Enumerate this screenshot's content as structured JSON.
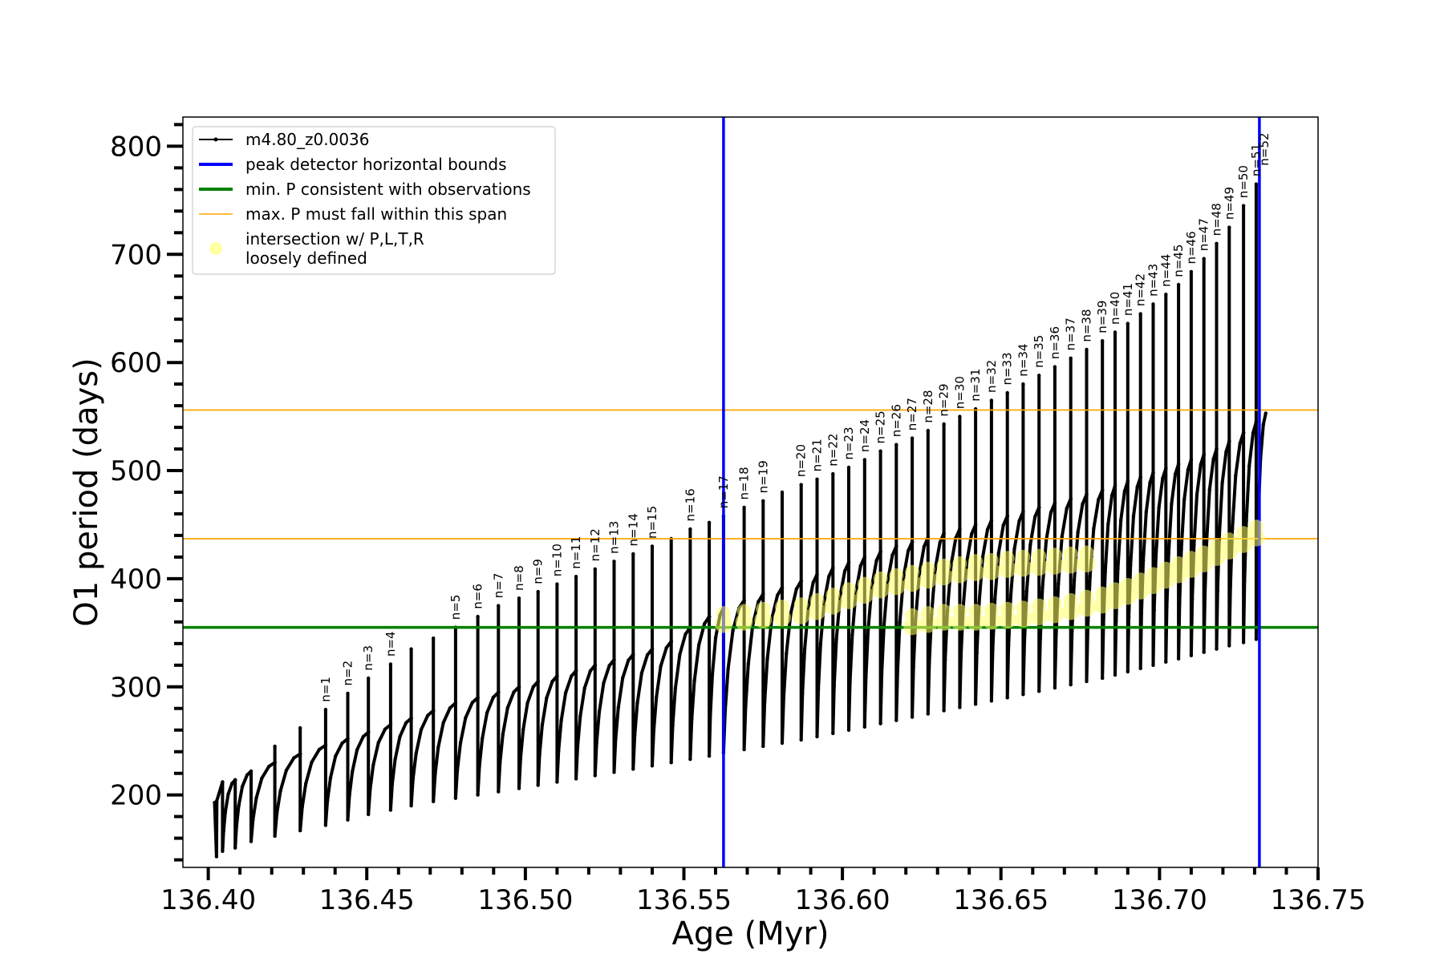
{
  "chart_data": {
    "type": "line",
    "xlabel": "Age (Myr)",
    "ylabel": "O1 period (days)",
    "xlim": [
      136.392,
      136.75
    ],
    "ylim": [
      133,
      827
    ],
    "x_ticks": [
      136.4,
      136.45,
      136.5,
      136.55,
      136.6,
      136.65,
      136.7,
      136.75
    ],
    "x_tick_labels": [
      "136.40",
      "136.45",
      "136.50",
      "136.55",
      "136.60",
      "136.65",
      "136.70",
      "136.75"
    ],
    "y_ticks": [
      200,
      300,
      400,
      500,
      600,
      700,
      800
    ],
    "y_tick_labels": [
      "200",
      "300",
      "400",
      "500",
      "600",
      "700",
      "800"
    ],
    "y_minor_step": 20,
    "x_minor_step": 0.01,
    "grid": false,
    "legend_position": "top-left",
    "legend": [
      {
        "label": "m4.80_z0.0036",
        "style": "line-dot",
        "color": "#000000"
      },
      {
        "label": "peak detector horizontal bounds",
        "style": "line",
        "color": "#0000ff"
      },
      {
        "label": "min. P consistent with observations",
        "style": "line",
        "color": "#008000"
      },
      {
        "label": "max. P must fall within this span",
        "style": "thin-line",
        "color": "#ffa500"
      },
      {
        "label": "intersection w/ P,L,T,R",
        "label2": "loosely defined",
        "style": "marker",
        "color": "#ffff66"
      }
    ],
    "vertical_lines": [
      {
        "x": 136.5625,
        "color": "#0000ff",
        "name": "peak detector horizontal bounds"
      },
      {
        "x": 136.7315,
        "color": "#0000ff",
        "name": "peak detector horizontal bounds"
      }
    ],
    "horizontal_lines": [
      {
        "y": 355,
        "color": "#008000",
        "name": "min. P consistent with observations"
      },
      {
        "y": 437,
        "color": "#ffa500",
        "name": "max. P must fall within this span"
      },
      {
        "y": 556,
        "color": "#ffa500",
        "name": "max. P must fall within this span"
      }
    ],
    "series": [
      {
        "name": "m4.80_z0.0036",
        "color": "#000000",
        "start": {
          "x": 136.402,
          "y": 193
        },
        "end": {
          "x": 136.7335,
          "y": 553
        },
        "pulses": [
          {
            "x": 136.4045,
            "base": 212,
            "peak": 212,
            "min": 143
          },
          {
            "x": 136.4085,
            "base": 214,
            "peak": 214,
            "min": 148
          },
          {
            "x": 136.4135,
            "base": 222,
            "peak": 222,
            "min": 151
          },
          {
            "x": 136.421,
            "base": 230,
            "peak": 245,
            "min": 157
          },
          {
            "x": 136.429,
            "base": 238,
            "peak": 262,
            "min": 162
          },
          {
            "x": 136.437,
            "base": 246,
            "peak": 279,
            "min": 167
          },
          {
            "x": 136.444,
            "base": 252,
            "peak": 294,
            "min": 172
          },
          {
            "x": 136.4505,
            "base": 258,
            "peak": 308,
            "min": 177
          },
          {
            "x": 136.4575,
            "base": 265,
            "peak": 321,
            "min": 182
          },
          {
            "x": 136.464,
            "base": 271,
            "peak": 335,
            "min": 186
          },
          {
            "x": 136.471,
            "base": 278,
            "peak": 345,
            "min": 190
          },
          {
            "x": 136.478,
            "base": 285,
            "peak": 355,
            "min": 194
          },
          {
            "x": 136.485,
            "base": 290,
            "peak": 365,
            "min": 197
          },
          {
            "x": 136.4915,
            "base": 295,
            "peak": 375,
            "min": 200
          },
          {
            "x": 136.498,
            "base": 300,
            "peak": 382,
            "min": 203
          },
          {
            "x": 136.504,
            "base": 305,
            "peak": 388,
            "min": 206
          },
          {
            "x": 136.51,
            "base": 310,
            "peak": 395,
            "min": 209
          },
          {
            "x": 136.516,
            "base": 315,
            "peak": 402,
            "min": 212
          },
          {
            "x": 136.522,
            "base": 320,
            "peak": 409,
            "min": 215
          },
          {
            "x": 136.528,
            "base": 325,
            "peak": 416,
            "min": 218
          },
          {
            "x": 136.534,
            "base": 330,
            "peak": 423,
            "min": 221
          },
          {
            "x": 136.54,
            "base": 335,
            "peak": 430,
            "min": 224
          },
          {
            "x": 136.546,
            "base": 342,
            "peak": 437,
            "min": 227
          },
          {
            "x": 136.552,
            "base": 355,
            "peak": 446,
            "min": 230
          },
          {
            "x": 136.558,
            "base": 365,
            "peak": 452,
            "min": 233
          },
          {
            "x": 136.5625,
            "base": 373,
            "peak": 458,
            "min": 236
          },
          {
            "x": 136.569,
            "base": 380,
            "peak": 466,
            "min": 239
          },
          {
            "x": 136.575,
            "base": 386,
            "peak": 472,
            "min": 242
          },
          {
            "x": 136.581,
            "base": 392,
            "peak": 480,
            "min": 245
          },
          {
            "x": 136.587,
            "base": 398,
            "peak": 487,
            "min": 248
          },
          {
            "x": 136.592,
            "base": 404,
            "peak": 492,
            "min": 251
          },
          {
            "x": 136.597,
            "base": 410,
            "peak": 497,
            "min": 254
          },
          {
            "x": 136.602,
            "base": 415,
            "peak": 503,
            "min": 257
          },
          {
            "x": 136.607,
            "base": 420,
            "peak": 510,
            "min": 260
          },
          {
            "x": 136.612,
            "base": 425,
            "peak": 518,
            "min": 263
          },
          {
            "x": 136.617,
            "base": 430,
            "peak": 524,
            "min": 266
          },
          {
            "x": 136.622,
            "base": 434,
            "peak": 530,
            "min": 269
          },
          {
            "x": 136.627,
            "base": 438,
            "peak": 537,
            "min": 272
          },
          {
            "x": 136.632,
            "base": 442,
            "peak": 543,
            "min": 275
          },
          {
            "x": 136.637,
            "base": 446,
            "peak": 550,
            "min": 278
          },
          {
            "x": 136.642,
            "base": 450,
            "peak": 557,
            "min": 281
          },
          {
            "x": 136.647,
            "base": 454,
            "peak": 565,
            "min": 284
          },
          {
            "x": 136.652,
            "base": 458,
            "peak": 572,
            "min": 287
          },
          {
            "x": 136.657,
            "base": 462,
            "peak": 580,
            "min": 290
          },
          {
            "x": 136.662,
            "base": 466,
            "peak": 588,
            "min": 293
          },
          {
            "x": 136.667,
            "base": 470,
            "peak": 596,
            "min": 296
          },
          {
            "x": 136.672,
            "base": 474,
            "peak": 604,
            "min": 299
          },
          {
            "x": 136.677,
            "base": 478,
            "peak": 612,
            "min": 302
          },
          {
            "x": 136.682,
            "base": 482,
            "peak": 620,
            "min": 305
          },
          {
            "x": 136.686,
            "base": 486,
            "peak": 628,
            "min": 308
          },
          {
            "x": 136.69,
            "base": 490,
            "peak": 636,
            "min": 311
          },
          {
            "x": 136.694,
            "base": 494,
            "peak": 645,
            "min": 314
          },
          {
            "x": 136.698,
            "base": 498,
            "peak": 654,
            "min": 317
          },
          {
            "x": 136.702,
            "base": 502,
            "peak": 663,
            "min": 320
          },
          {
            "x": 136.706,
            "base": 506,
            "peak": 672,
            "min": 323
          },
          {
            "x": 136.71,
            "base": 510,
            "peak": 684,
            "min": 326
          },
          {
            "x": 136.714,
            "base": 515,
            "peak": 696,
            "min": 329
          },
          {
            "x": 136.718,
            "base": 520,
            "peak": 710,
            "min": 332
          },
          {
            "x": 136.722,
            "base": 527,
            "peak": 725,
            "min": 335
          },
          {
            "x": 136.7265,
            "base": 535,
            "peak": 745,
            "min": 338
          },
          {
            "x": 136.7305,
            "base": 545,
            "peak": 765,
            "min": 341
          }
        ]
      }
    ],
    "n_labels": [
      {
        "text": "n=1",
        "x": 136.437,
        "y": 283
      },
      {
        "text": "n=2",
        "x": 136.444,
        "y": 298
      },
      {
        "text": "n=3",
        "x": 136.4505,
        "y": 312
      },
      {
        "text": "n=4",
        "x": 136.4575,
        "y": 325
      },
      {
        "text": "n=5",
        "x": 136.478,
        "y": 359
      },
      {
        "text": "n=6",
        "x": 136.485,
        "y": 369
      },
      {
        "text": "n=7",
        "x": 136.4915,
        "y": 379
      },
      {
        "text": "n=8",
        "x": 136.498,
        "y": 386
      },
      {
        "text": "n=9",
        "x": 136.504,
        "y": 392
      },
      {
        "text": "n=10",
        "x": 136.51,
        "y": 399
      },
      {
        "text": "n=11",
        "x": 136.516,
        "y": 406
      },
      {
        "text": "n=12",
        "x": 136.522,
        "y": 413
      },
      {
        "text": "n=13",
        "x": 136.528,
        "y": 420
      },
      {
        "text": "n=14",
        "x": 136.534,
        "y": 427
      },
      {
        "text": "n=15",
        "x": 136.54,
        "y": 434
      },
      {
        "text": "n=16",
        "x": 136.552,
        "y": 450
      },
      {
        "text": "n=17",
        "x": 136.5625,
        "y": 462
      },
      {
        "text": "n=18",
        "x": 136.569,
        "y": 470
      },
      {
        "text": "n=19",
        "x": 136.575,
        "y": 476
      },
      {
        "text": "n=20",
        "x": 136.587,
        "y": 491
      },
      {
        "text": "n=21",
        "x": 136.592,
        "y": 496
      },
      {
        "text": "n=22",
        "x": 136.597,
        "y": 501
      },
      {
        "text": "n=23",
        "x": 136.602,
        "y": 507
      },
      {
        "text": "n=24",
        "x": 136.607,
        "y": 514
      },
      {
        "text": "n=25",
        "x": 136.612,
        "y": 522
      },
      {
        "text": "n=26",
        "x": 136.617,
        "y": 528
      },
      {
        "text": "n=27",
        "x": 136.622,
        "y": 534
      },
      {
        "text": "n=28",
        "x": 136.627,
        "y": 541
      },
      {
        "text": "n=29",
        "x": 136.632,
        "y": 547
      },
      {
        "text": "n=30",
        "x": 136.637,
        "y": 554
      },
      {
        "text": "n=31",
        "x": 136.642,
        "y": 561
      },
      {
        "text": "n=32",
        "x": 136.647,
        "y": 569
      },
      {
        "text": "n=33",
        "x": 136.652,
        "y": 576
      },
      {
        "text": "n=34",
        "x": 136.657,
        "y": 584
      },
      {
        "text": "n=35",
        "x": 136.662,
        "y": 592
      },
      {
        "text": "n=36",
        "x": 136.667,
        "y": 600
      },
      {
        "text": "n=37",
        "x": 136.672,
        "y": 608
      },
      {
        "text": "n=38",
        "x": 136.677,
        "y": 616
      },
      {
        "text": "n=39",
        "x": 136.682,
        "y": 624
      },
      {
        "text": "n=40",
        "x": 136.686,
        "y": 632
      },
      {
        "text": "n=41",
        "x": 136.69,
        "y": 640
      },
      {
        "text": "n=42",
        "x": 136.694,
        "y": 649
      },
      {
        "text": "n=43",
        "x": 136.698,
        "y": 658
      },
      {
        "text": "n=44",
        "x": 136.702,
        "y": 667
      },
      {
        "text": "n=45",
        "x": 136.706,
        "y": 676
      },
      {
        "text": "n=46",
        "x": 136.71,
        "y": 688
      },
      {
        "text": "n=47",
        "x": 136.714,
        "y": 700
      },
      {
        "text": "n=48",
        "x": 136.718,
        "y": 714
      },
      {
        "text": "n=49",
        "x": 136.722,
        "y": 729
      },
      {
        "text": "n=50",
        "x": 136.7265,
        "y": 749
      },
      {
        "text": "n=51",
        "x": 136.7305,
        "y": 769
      },
      {
        "text": "n=52",
        "x": 136.733,
        "y": 779
      }
    ],
    "intersection_points": {
      "name": "intersection w/ P,L,T,R",
      "color": "#ffff66",
      "upper_band": [
        {
          "x": 136.5625,
          "y": 358
        },
        {
          "x": 136.569,
          "y": 360
        },
        {
          "x": 136.575,
          "y": 362
        },
        {
          "x": 136.581,
          "y": 364
        },
        {
          "x": 136.587,
          "y": 366
        },
        {
          "x": 136.592,
          "y": 370
        },
        {
          "x": 136.597,
          "y": 375
        },
        {
          "x": 136.602,
          "y": 380
        },
        {
          "x": 136.607,
          "y": 385
        },
        {
          "x": 136.612,
          "y": 390
        },
        {
          "x": 136.617,
          "y": 393
        },
        {
          "x": 136.622,
          "y": 396
        },
        {
          "x": 136.627,
          "y": 399
        },
        {
          "x": 136.632,
          "y": 402
        },
        {
          "x": 136.637,
          "y": 404
        },
        {
          "x": 136.642,
          "y": 406
        },
        {
          "x": 136.647,
          "y": 407
        },
        {
          "x": 136.652,
          "y": 409
        },
        {
          "x": 136.657,
          "y": 410
        },
        {
          "x": 136.662,
          "y": 411
        },
        {
          "x": 136.667,
          "y": 412
        },
        {
          "x": 136.672,
          "y": 413
        },
        {
          "x": 136.677,
          "y": 414
        }
      ],
      "lower_band": [
        {
          "x": 136.622,
          "y": 356
        },
        {
          "x": 136.627,
          "y": 358
        },
        {
          "x": 136.632,
          "y": 360
        },
        {
          "x": 136.637,
          "y": 360
        },
        {
          "x": 136.642,
          "y": 360
        },
        {
          "x": 136.647,
          "y": 361
        },
        {
          "x": 136.652,
          "y": 362
        },
        {
          "x": 136.657,
          "y": 363
        },
        {
          "x": 136.662,
          "y": 365
        },
        {
          "x": 136.667,
          "y": 367
        },
        {
          "x": 136.672,
          "y": 370
        },
        {
          "x": 136.677,
          "y": 373
        },
        {
          "x": 136.682,
          "y": 376
        },
        {
          "x": 136.686,
          "y": 380
        },
        {
          "x": 136.69,
          "y": 384
        },
        {
          "x": 136.694,
          "y": 389
        },
        {
          "x": 136.698,
          "y": 394
        },
        {
          "x": 136.702,
          "y": 399
        },
        {
          "x": 136.706,
          "y": 404
        },
        {
          "x": 136.71,
          "y": 409
        },
        {
          "x": 136.714,
          "y": 414
        },
        {
          "x": 136.718,
          "y": 420
        },
        {
          "x": 136.722,
          "y": 426
        },
        {
          "x": 136.7265,
          "y": 432
        },
        {
          "x": 136.7305,
          "y": 438
        }
      ]
    }
  }
}
